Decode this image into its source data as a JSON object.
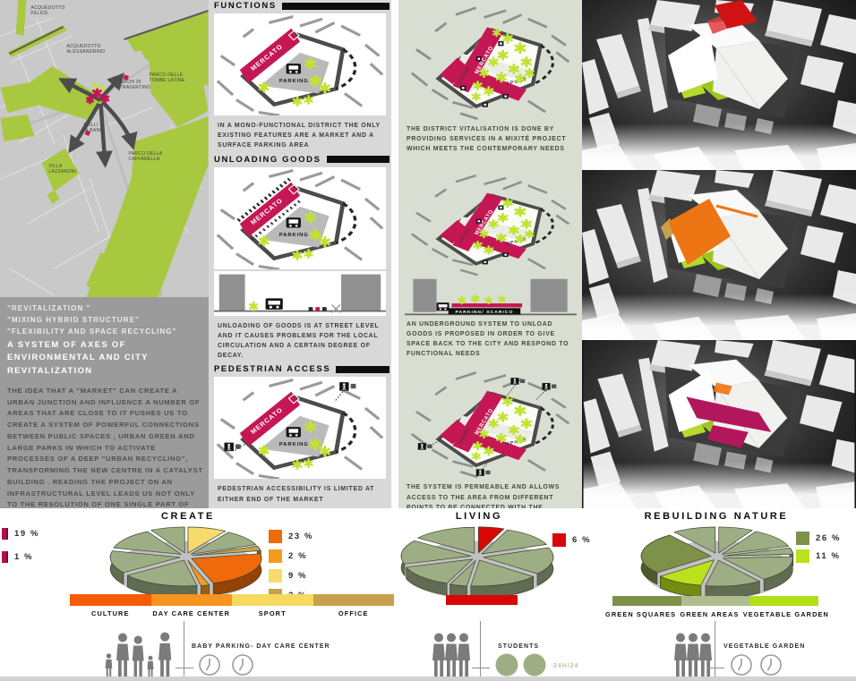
{
  "palette": {
    "magenta": "#c41753",
    "lime": "#bfe431",
    "map_green": "#a8c840",
    "sage": "#9dae85",
    "olive": "#7e9148",
    "bright_lime": "#b9e21c",
    "orange": "#f06a0a",
    "orange_light": "#f59b1e",
    "yellow": "#f6dc6e",
    "tan": "#c4a14f",
    "red": "#d90707",
    "crimson": "#b70d4e"
  },
  "map_panel": {
    "labels": {
      "felice_1": "ACQUEDOTTO",
      "felice_2": "FELICE",
      "alessandrino_1": "ACQUEDOTTO",
      "alessandrino_2": "ALESSANDRINO",
      "tombe_1": "PARCO DELLE",
      "tombe_2": "TOMBE LATINE",
      "archi_1": "ARCHI DI",
      "archi_2": "TRAVERTINO",
      "colli_1": "COLLI",
      "colli_2": "ALBANI",
      "villa_1": "VILLA",
      "villa_2": "LAZZARONI",
      "caffarella_1": "PARCO DELLA",
      "caffarella_2": "CAFFARELLA"
    }
  },
  "intro": {
    "quotes": [
      "\"REVITALIZATION \"",
      "\"MIXING HYBRID STRUCTURE\"",
      "\"FLEXIBILITY AND SPACE RECYCLING\""
    ],
    "title": "A SYSTEM OF AXES OF ENVIRONMENTAL AND CITY REVITALIZATION",
    "paragraph": "THE IDEA THAT A \"MARKET\" CAN CREATE A URBAN JUNCTION AND INFLUENCE A NUMBER OF AREAS THAT ARE CLOSE TO IT PUSHES US TO CREATE A SYSTEM OF POWERFUL CONNECTIONS BETWEEN PUBLIC SPACES , URBAN GREEN AND LARGE PARKS IN WHICH TO ACTIVATE PROCESSES OF A DEEP \"URBAN RECYCLING\", TRANSFORMING THE NEW CENTRE IN A CATALYST BUILDING . READING THE PROJECT ON AN INFRASTRUCTURAL LEVEL LEADS US NOT ONLY TO THE RESOLUTION OF ONE SINGLE PART OF THE CITY, BUT OF ITS RELATIONSHIP WITH THE URBAN NETWORK: WE MUST WORK ON GLOBAL FLOWS AND PROCESSES."
  },
  "existing": {
    "diagram_labels": {
      "mercato": "MERCATO",
      "parking": "PARKING"
    },
    "sections": [
      {
        "header": "FUNCTIONS",
        "caption": "IN A MONO-FUNCTIONAL DISTRICT THE ONLY EXISTING FEATURES ARE A MARKET AND A SURFACE PARKING AREA"
      },
      {
        "header": "UNLOADING GOODS",
        "caption": "UNLOADING OF GOODS IS AT STREET LEVEL AND IT CAUSES PROBLEMS FOR THE LOCAL CIRCULATION AND A CERTAIN DEGREE OF DECAY."
      },
      {
        "header": "PEDESTRIAN ACCESS",
        "caption": "PEDESTRIAN ACCESSIBILITY IS LIMITED AT EITHER END OF THE MARKET"
      }
    ]
  },
  "proposal": {
    "diagram_labels": {
      "mercato": "MERCATO",
      "cultura": "CULTURA",
      "sport": "SPORT",
      "section": "PARKING/ SCARICO"
    },
    "sections": [
      {
        "caption": "THE DISTRICT VITALISATION IS DONE BY PROVIDING SERVICES IN A MIXITÉ PROJECT WHICH MEETS THE CONTEMPORARY NEEDS"
      },
      {
        "caption": "AN UNDERGROUND SYSTEM TO UNLOAD GOODS IS PROPOSED IN ORDER TO GIVE SPACE BACK TO THE CITY AND RESPOND TO FUNCTIONAL NEEDS"
      },
      {
        "caption": "THE SYSTEM IS PERMEABLE AND ALLOWS ACCESS TO THE AREA FROM DIFFERENT POINTS TO BE CONNECTED WITH THE CONTEXT AND THE CITY"
      }
    ]
  },
  "chart_data": [
    {
      "type": "pie",
      "title": "CREATE",
      "legend_left": [
        {
          "label": "19 %",
          "value": 19,
          "color": "#b70d4e"
        },
        {
          "label": "1 %",
          "value": 1,
          "color": "#b70d4e"
        }
      ],
      "legend_right": [
        {
          "label": "23 %",
          "value": 23,
          "color": "#f06a0a"
        },
        {
          "label": "2 %",
          "value": 2,
          "color": "#f59b1e"
        },
        {
          "label": "9 %",
          "value": 9,
          "color": "#f6dc6e"
        },
        {
          "label": "3 %",
          "value": 3,
          "color": "#c4a14f"
        }
      ],
      "slices": [
        {
          "v": 9,
          "c": "#f6dc6e"
        },
        {
          "v": 10,
          "c": "#9dae85"
        },
        {
          "v": 3,
          "c": "#c4a14f"
        },
        {
          "v": 23,
          "c": "#f06a0a"
        },
        {
          "v": 2,
          "c": "#f59b1e"
        },
        {
          "v": 18,
          "c": "#9dae85"
        },
        {
          "v": 14,
          "c": "#9dae85"
        },
        {
          "v": 13,
          "c": "#9dae85"
        },
        {
          "v": 8,
          "c": "#9dae85"
        }
      ],
      "bar_segments": [
        {
          "label": "CULTURE",
          "color": "#f35c05"
        },
        {
          "label": "DAY CARE CENTER",
          "color": "#f79420"
        },
        {
          "label": "SPORT",
          "color": "#f6d95f"
        },
        {
          "label": "OFFICE",
          "color": "#c9a14e"
        }
      ],
      "icons_label": "BABY PARKING- DAY CARE CENTER"
    },
    {
      "type": "pie",
      "title": "LIVING",
      "legend_right": [
        {
          "label": "6 %",
          "value": 6,
          "color": "#d90707"
        }
      ],
      "slices": [
        {
          "v": 6,
          "c": "#d90707"
        },
        {
          "v": 13,
          "c": "#9dae85"
        },
        {
          "v": 17,
          "c": "#9dae85"
        },
        {
          "v": 16,
          "c": "#9dae85"
        },
        {
          "v": 4,
          "c": "#9dae85"
        },
        {
          "v": 14,
          "c": "#9dae85"
        },
        {
          "v": 15,
          "c": "#9dae85"
        },
        {
          "v": 15,
          "c": "#9dae85"
        }
      ],
      "bar_segments": [
        {
          "label": "",
          "color": "#d90707"
        }
      ],
      "icons_label": "STUDENTS",
      "icons_note": "24H/24"
    },
    {
      "type": "pie",
      "title": "REBUILDING NATURE",
      "legend_right": [
        {
          "label": "26 %",
          "value": 26,
          "color": "#7e9148"
        },
        {
          "label": "11 %",
          "value": 11,
          "color": "#b9e21c"
        }
      ],
      "slices": [
        {
          "v": 8,
          "c": "#9dae85"
        },
        {
          "v": 12,
          "c": "#9dae85"
        },
        {
          "v": 4,
          "c": "#9dae85"
        },
        {
          "v": 16,
          "c": "#9dae85"
        },
        {
          "v": 13,
          "c": "#9dae85"
        },
        {
          "v": 11,
          "c": "#b9e21c"
        },
        {
          "v": 26,
          "c": "#7e9148"
        },
        {
          "v": 10,
          "c": "#9dae85"
        }
      ],
      "bar_segments": [
        {
          "label": "GREEN SQUARES",
          "color": "#7e9148"
        },
        {
          "label": "GREEN AREAS",
          "color": "#aebe8e"
        },
        {
          "label": "VEGETABLE GARDEN",
          "color": "#b1e018"
        }
      ],
      "icons_label": "VEGETABLE GARDEN"
    }
  ]
}
